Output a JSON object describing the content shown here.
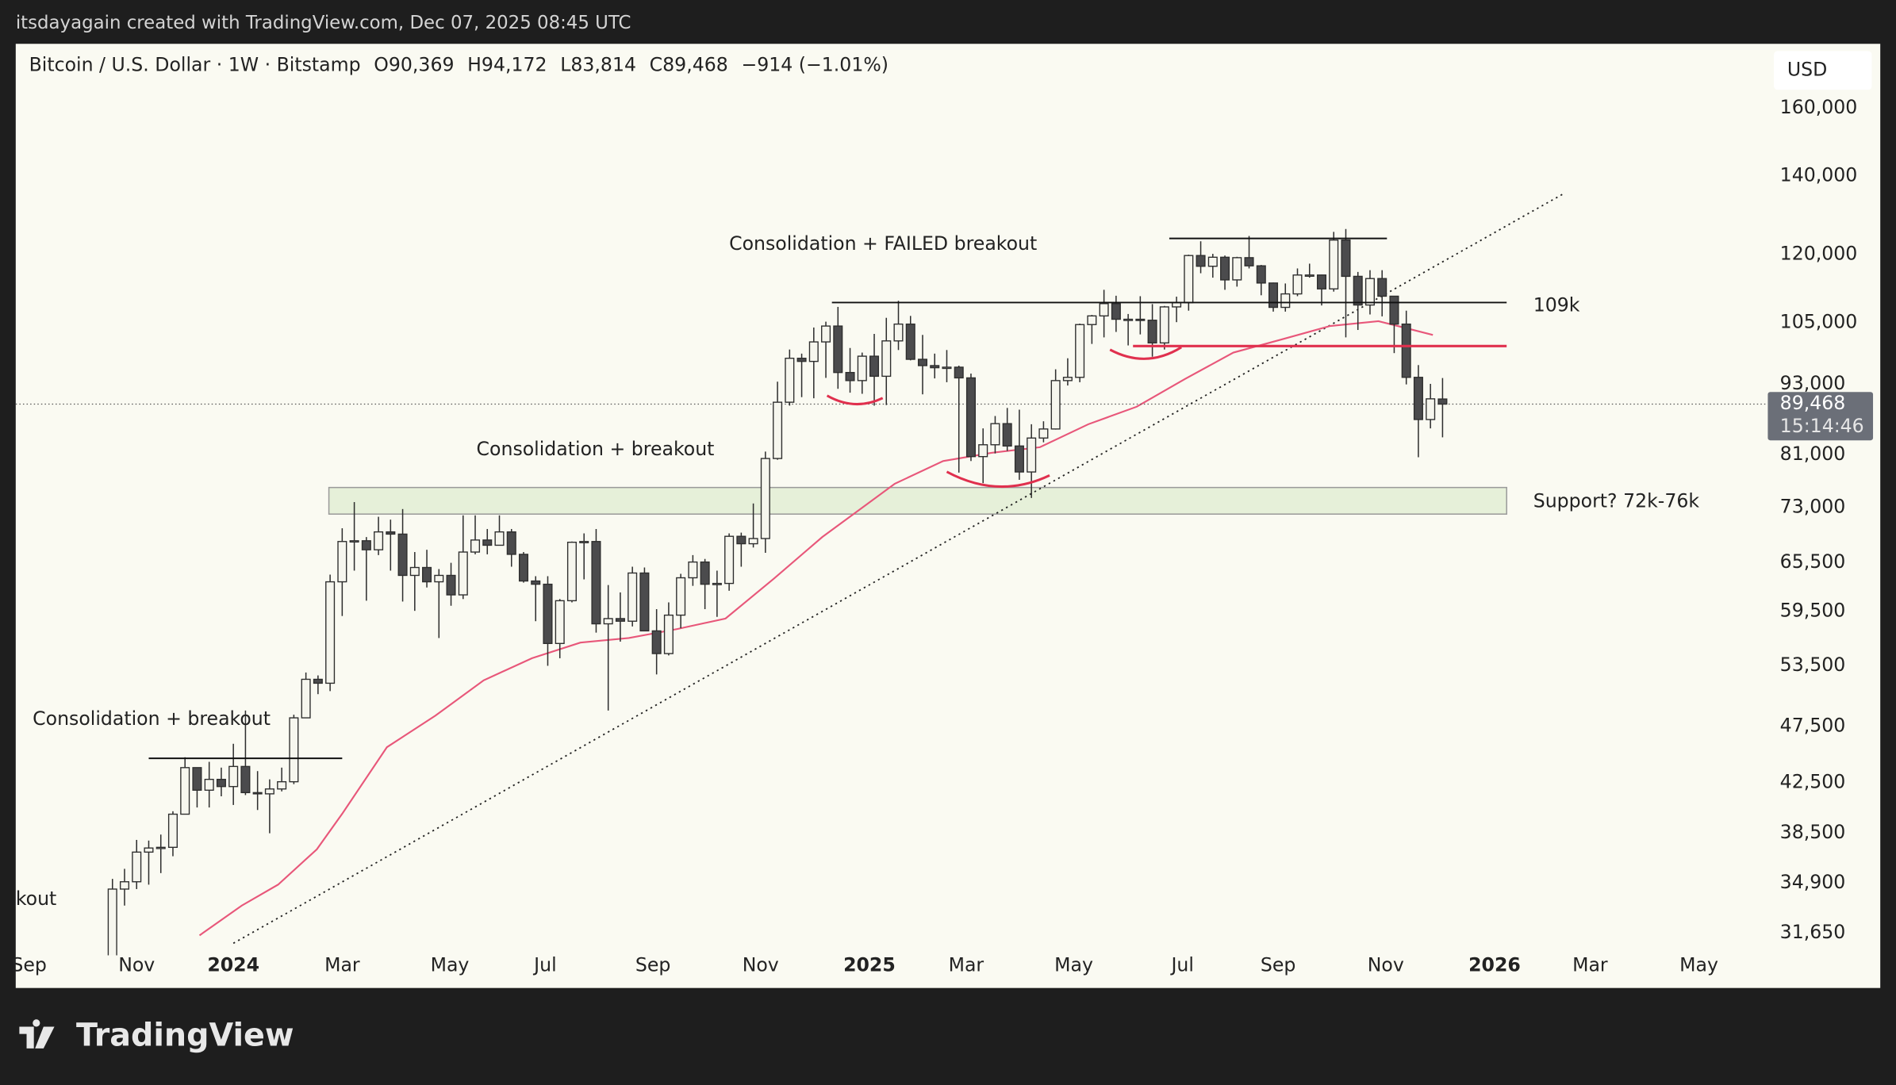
{
  "header": {
    "credit": "itsdayagain created with TradingView.com, Dec 07, 2025 08:45 UTC"
  },
  "footer": {
    "logo": "TradingView"
  },
  "chart_data": {
    "type": "candlestick",
    "title": "Bitcoin / U.S. Dollar · 1W · Bitstamp",
    "ohlc_legend": [
      {
        "key": "O",
        "value": "90,369"
      },
      {
        "key": "H",
        "value": "94,172"
      },
      {
        "key": "L",
        "value": "83,814"
      },
      {
        "key": "C",
        "value": "89,468"
      }
    ],
    "change": "−914 (−1.01%)",
    "currency": "USD",
    "countdown": "15:14:46",
    "open": [
      30000,
      34500,
      35000,
      37100,
      37400,
      37450,
      39970,
      43800,
      41900,
      42800,
      42200,
      43900,
      41700,
      41600,
      42000,
      42600,
      48300,
      52100,
      51700,
      63100,
      68300,
      68400,
      67200,
      69600,
      69300,
      63900,
      64900,
      63100,
      63900,
      61500,
      66900,
      68500,
      67800,
      69600,
      66600,
      63200,
      62800,
      55900,
      60800,
      68200,
      68300,
      58100,
      58700,
      58400,
      64200,
      57300,
      54800,
      59100,
      63600,
      65600,
      62800,
      62900,
      69000,
      68000,
      68700,
      80400,
      89800,
      97900,
      97300,
      101100,
      104300,
      95200,
      93700,
      98300,
      94500,
      101300,
      104700,
      97700,
      96500,
      96100,
      96200,
      94200,
      80700,
      82600,
      86100,
      82400,
      78300,
      83700,
      85200,
      93700,
      94300,
      104600,
      106400,
      109000,
      105700,
      105700,
      105500,
      100900,
      108300,
      109200,
      119800,
      117300,
      119400,
      114200,
      119300,
      117400,
      113500,
      108200,
      111100,
      115300,
      115300,
      112200,
      123500,
      115000,
      108700,
      114500,
      110600,
      104700,
      94300,
      86800,
      90369
    ],
    "high": [
      35200,
      35900,
      38000,
      37950,
      38400,
      40200,
      44700,
      43800,
      44300,
      43800,
      45900,
      49000,
      43500,
      42800,
      43800,
      48600,
      52800,
      52500,
      64000,
      70100,
      73800,
      68900,
      71700,
      71300,
      72800,
      66900,
      67200,
      64700,
      65500,
      71900,
      71900,
      70000,
      71900,
      70000,
      66900,
      63800,
      63800,
      61000,
      68300,
      69400,
      70000,
      62700,
      61800,
      65000,
      64900,
      59800,
      60600,
      64100,
      66500,
      66000,
      64500,
      69400,
      69500,
      73600,
      81500,
      93500,
      99600,
      98800,
      104000,
      105200,
      108300,
      99900,
      99000,
      102700,
      106000,
      109600,
      106400,
      102500,
      98800,
      99500,
      96500,
      95000,
      85300,
      87400,
      88800,
      88500,
      86000,
      86500,
      95800,
      97900,
      104800,
      106600,
      112000,
      110700,
      106800,
      110600,
      108900,
      108500,
      110500,
      120000,
      123200,
      120200,
      119800,
      119500,
      124500,
      117600,
      113600,
      113400,
      116800,
      117900,
      115400,
      125500,
      126200,
      116000,
      116400,
      116400,
      110600,
      107500,
      96600,
      93100,
      94172
    ],
    "low": [
      29900,
      33400,
      34500,
      34800,
      35600,
      36800,
      39970,
      40500,
      40500,
      41400,
      40700,
      41500,
      40300,
      38500,
      41800,
      42400,
      48300,
      50600,
      50900,
      59000,
      64500,
      60800,
      66500,
      64500,
      60700,
      59600,
      62400,
      56500,
      60200,
      61000,
      66600,
      66600,
      67800,
      65000,
      63000,
      58400,
      53500,
      54300,
      60600,
      63400,
      57100,
      49000,
      56100,
      57800,
      57300,
      52600,
      54600,
      57600,
      62600,
      59800,
      58900,
      62000,
      65000,
      67500,
      66800,
      80200,
      89200,
      90700,
      90500,
      94200,
      92200,
      91500,
      91300,
      89200,
      89300,
      99500,
      97500,
      91200,
      94100,
      93400,
      78200,
      80000,
      76600,
      81200,
      81600,
      77100,
      74400,
      83000,
      85100,
      92800,
      93400,
      100700,
      102000,
      103100,
      100400,
      102600,
      98200,
      99600,
      105100,
      107500,
      115700,
      114700,
      112000,
      112700,
      116800,
      110800,
      107300,
      107300,
      110600,
      114700,
      108600,
      111600,
      102000,
      103500,
      106700,
      106300,
      98900,
      93000,
      80600,
      85300,
      83814
    ],
    "close": [
      34500,
      35000,
      37100,
      37400,
      37450,
      39970,
      43800,
      41900,
      42800,
      42200,
      43900,
      41700,
      41600,
      42000,
      42600,
      48300,
      52100,
      51700,
      63100,
      68300,
      68400,
      67200,
      69600,
      69300,
      63900,
      64900,
      63100,
      63900,
      61500,
      66900,
      68500,
      67800,
      69600,
      66600,
      63200,
      62800,
      55900,
      60800,
      68200,
      68300,
      58100,
      58700,
      58400,
      64200,
      57300,
      54800,
      59100,
      63600,
      65600,
      62800,
      62900,
      69000,
      68000,
      68700,
      80400,
      89800,
      97900,
      97300,
      101100,
      104300,
      95200,
      93700,
      98300,
      94500,
      101300,
      104700,
      97700,
      96500,
      96100,
      96200,
      94200,
      80700,
      82600,
      86100,
      82400,
      78300,
      83700,
      85200,
      93700,
      94300,
      104600,
      106400,
      109000,
      105700,
      105700,
      105500,
      100900,
      108300,
      109200,
      119800,
      117300,
      119400,
      114200,
      119300,
      117400,
      113500,
      108200,
      111100,
      115300,
      115300,
      112200,
      123500,
      115000,
      108700,
      114500,
      110600,
      104700,
      94300,
      86800,
      90400,
      89468
    ],
    "moving_average": {
      "color": "#e8577a",
      "x": [
        7.2,
        10.7,
        13.7,
        16.9,
        19,
        22.7,
        26.7,
        30.7,
        34.7,
        38.7,
        42.7,
        46.7,
        50.7,
        54.7,
        58.7,
        64.7,
        68.7,
        72.7,
        76.7,
        80.7,
        84.7,
        88.7,
        92.7,
        96.7,
        100.7,
        104.7,
        109.2
      ],
      "values": [
        31500,
        33400,
        34800,
        37300,
        40000,
        45600,
        48500,
        52000,
        54300,
        56000,
        56500,
        57500,
        58700,
        63500,
        68900,
        76500,
        80000,
        81300,
        82200,
        86000,
        89000,
        94000,
        99000,
        101600,
        104300,
        105300,
        102500
      ]
    },
    "colors": {
      "up": "#f6f6ee",
      "down": "#4b4b4d",
      "outline": "#2e2e2e"
    },
    "log_scale": true,
    "grid": false,
    "ylim": [
      30650,
      181600
    ],
    "yticks": [
      {
        "value": 160000,
        "label": "160,000"
      },
      {
        "value": 140000,
        "label": "140,000"
      },
      {
        "value": 120000,
        "label": "120,000"
      },
      {
        "value": 105000,
        "label": "105,000"
      },
      {
        "value": 93000,
        "label": "93,000"
      },
      {
        "value": 81000,
        "label": "81,000"
      },
      {
        "value": 73000,
        "label": "73,000"
      },
      {
        "value": 65500,
        "label": "65,500"
      },
      {
        "value": 59500,
        "label": "59,500"
      },
      {
        "value": 53500,
        "label": "53,500"
      },
      {
        "value": 47500,
        "label": "47,500"
      },
      {
        "value": 42500,
        "label": "42,500"
      },
      {
        "value": 38500,
        "label": "38,500"
      },
      {
        "value": 34900,
        "label": "34,900"
      },
      {
        "value": 31650,
        "label": "31,650"
      }
    ],
    "xlim": [
      -8,
      136.7
    ],
    "xticks": [
      {
        "value": -6.9,
        "label": "Sep"
      },
      {
        "value": 2.0,
        "label": "Nov"
      },
      {
        "value": 10.0,
        "label": "2024"
      },
      {
        "value": 19.0,
        "label": "Mar"
      },
      {
        "value": 27.9,
        "label": "May"
      },
      {
        "value": 35.8,
        "label": "Jul"
      },
      {
        "value": 44.7,
        "label": "Sep"
      },
      {
        "value": 53.6,
        "label": "Nov"
      },
      {
        "value": 62.6,
        "label": "2025"
      },
      {
        "value": 70.6,
        "label": "Mar"
      },
      {
        "value": 79.5,
        "label": "May"
      },
      {
        "value": 88.5,
        "label": "Jul"
      },
      {
        "value": 96.4,
        "label": "Sep"
      },
      {
        "value": 105.3,
        "label": "Nov"
      },
      {
        "value": 114.3,
        "label": "2026"
      },
      {
        "value": 122.2,
        "label": "Mar"
      },
      {
        "value": 131.2,
        "label": "May"
      }
    ],
    "annotations": [
      "Consolidation + FAILED breakout",
      "Consolidation + breakout",
      "Consolidation + breakout",
      "kout",
      "109k",
      "Support? 72k-76k"
    ]
  }
}
